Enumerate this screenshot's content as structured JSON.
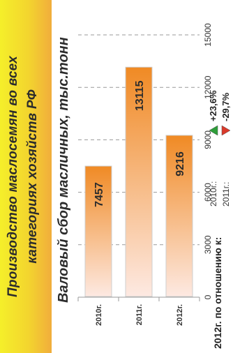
{
  "header": {
    "title_line1": "Производство маслосемян во всех",
    "title_line2": "категориях хозяйств РФ"
  },
  "chart_subtitle": "Валовый сбор масличных, тыс.тонн",
  "comparison": {
    "label": "2012г. по отношению к:",
    "rows": [
      {
        "label": "2010г.:",
        "value": "+23,6%",
        "direction": "up",
        "color": "#2e9e3a"
      },
      {
        "label": "2011г.:",
        "value": "-29,7%",
        "direction": "down",
        "color": "#d93a2b"
      }
    ]
  },
  "chart_data": {
    "type": "bar",
    "orientation": "horizontal",
    "categories": [
      "2010г.",
      "2011г.",
      "2012г."
    ],
    "values": [
      7457,
      13115,
      9216
    ],
    "data_labels": [
      "7457",
      "13115",
      "9216"
    ],
    "xlim": [
      0,
      15000
    ],
    "ticks": [
      0,
      3000,
      6000,
      9000,
      12000,
      15000
    ],
    "tick_labels": [
      "0",
      "3000",
      "6000",
      "9000",
      "12000",
      "15000"
    ],
    "grid": true,
    "bar_color": "#f08a24",
    "bar_fade_color": "#fde9e2"
  }
}
